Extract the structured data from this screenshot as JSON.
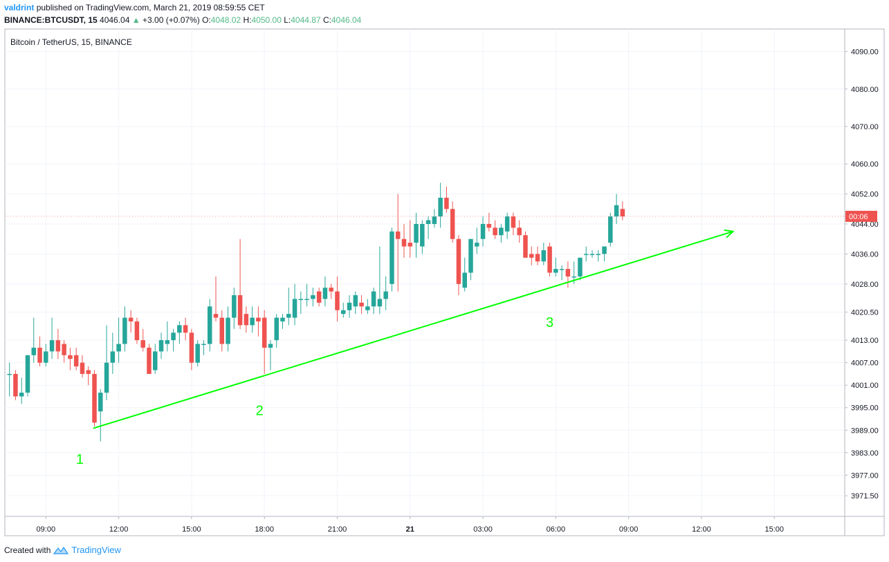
{
  "header": {
    "author": "valdrint",
    "published_text": "published on TradingView.com, March 21, 2019 08:59:55 CET",
    "symbol": "BINANCE:BTCUSDT, 15",
    "last": "4046.04",
    "change": "+3.00 (+0.07%)",
    "open_label": "O:",
    "open": "4048.02",
    "high_label": "H:",
    "high": "4050.00",
    "low_label": "L:",
    "low": "4044.87",
    "close_label": "C:",
    "close": "4046.04"
  },
  "footer": {
    "created_with": "Created with",
    "brand": "TradingView"
  },
  "colors": {
    "up": "#26a69a",
    "down": "#ef5350",
    "trendline": "#00ff00",
    "label": "#00ff00",
    "grid": "#f0f3fa",
    "price_badge": "#ef5350"
  },
  "chart_data": {
    "type": "candlestick",
    "title": "Bitcoin / TetherUS, 15, BINANCE",
    "ylim": [
      3966,
      4096
    ],
    "y_ticks": [
      "4090.00",
      "4080.00",
      "4070.00",
      "4060.00",
      "4052.00",
      "4044.00",
      "4036.00",
      "4028.00",
      "4020.50",
      "4013.00",
      "4007.00",
      "4001.00",
      "3995.00",
      "3989.00",
      "3983.00",
      "3977.00",
      "3971.50"
    ],
    "x_tick_labels": [
      "09:00",
      "12:00",
      "15:00",
      "18:00",
      "21:00",
      "21",
      "03:00",
      "06:00",
      "09:00",
      "12:00",
      "15:00"
    ],
    "x_range_hours": [
      -1.69,
      32.9
    ],
    "current_price_badge": "00:06",
    "current_price": 4046.04,
    "candles": [
      {
        "t": -1.5,
        "o": 4004,
        "h": 4007,
        "l": 3998,
        "c": 4004
      },
      {
        "t": -1.25,
        "o": 4004,
        "h": 4005,
        "l": 3997,
        "c": 3998
      },
      {
        "t": -1.0,
        "o": 3998,
        "h": 4003,
        "l": 3996,
        "c": 3999
      },
      {
        "t": -0.75,
        "o": 3999,
        "h": 4009,
        "l": 3998,
        "c": 4009
      },
      {
        "t": -0.5,
        "o": 4009,
        "h": 4019,
        "l": 4007,
        "c": 4011
      },
      {
        "t": -0.25,
        "o": 4011,
        "h": 4014,
        "l": 4006,
        "c": 4007
      },
      {
        "t": 0.0,
        "o": 4007,
        "h": 4012,
        "l": 4006,
        "c": 4010
      },
      {
        "t": 0.25,
        "o": 4010,
        "h": 4019,
        "l": 4008,
        "c": 4013
      },
      {
        "t": 0.5,
        "o": 4013,
        "h": 4016,
        "l": 4008,
        "c": 4010
      },
      {
        "t": 0.75,
        "o": 4012,
        "h": 4013,
        "l": 4007,
        "c": 4009
      },
      {
        "t": 1.0,
        "o": 4009,
        "h": 4011,
        "l": 4005,
        "c": 4008
      },
      {
        "t": 1.25,
        "o": 4009,
        "h": 4011,
        "l": 4005,
        "c": 4006
      },
      {
        "t": 1.5,
        "o": 4007,
        "h": 4009,
        "l": 4003,
        "c": 4004
      },
      {
        "t": 1.75,
        "o": 4005,
        "h": 4006,
        "l": 4001,
        "c": 4004
      },
      {
        "t": 2.0,
        "o": 4004,
        "h": 4005,
        "l": 3990,
        "c": 3991
      },
      {
        "t": 2.25,
        "o": 3994,
        "h": 4000,
        "l": 3986,
        "c": 3999
      },
      {
        "t": 2.5,
        "o": 3999,
        "h": 4017,
        "l": 3997,
        "c": 4007
      },
      {
        "t": 2.75,
        "o": 4007,
        "h": 4015,
        "l": 4004,
        "c": 4010
      },
      {
        "t": 3.0,
        "o": 4010,
        "h": 4019,
        "l": 4007,
        "c": 4012
      },
      {
        "t": 3.25,
        "o": 4012,
        "h": 4022,
        "l": 4010,
        "c": 4019
      },
      {
        "t": 3.5,
        "o": 4019,
        "h": 4021,
        "l": 4015,
        "c": 4018
      },
      {
        "t": 3.75,
        "o": 4018,
        "h": 4019,
        "l": 4012,
        "c": 4013
      },
      {
        "t": 4.0,
        "o": 4013,
        "h": 4016,
        "l": 4010,
        "c": 4011
      },
      {
        "t": 4.25,
        "o": 4011,
        "h": 4012,
        "l": 4004,
        "c": 4004
      },
      {
        "t": 4.5,
        "o": 4005,
        "h": 4012,
        "l": 4004,
        "c": 4010
      },
      {
        "t": 4.75,
        "o": 4010,
        "h": 4015,
        "l": 4008,
        "c": 4013
      },
      {
        "t": 5.0,
        "o": 4012,
        "h": 4018,
        "l": 4010,
        "c": 4013
      },
      {
        "t": 5.25,
        "o": 4013,
        "h": 4016,
        "l": 4010,
        "c": 4015
      },
      {
        "t": 5.5,
        "o": 4015,
        "h": 4018,
        "l": 4012,
        "c": 4017
      },
      {
        "t": 5.75,
        "o": 4017,
        "h": 4019,
        "l": 4013,
        "c": 4015
      },
      {
        "t": 6.0,
        "o": 4015,
        "h": 4016,
        "l": 4005,
        "c": 4007
      },
      {
        "t": 6.25,
        "o": 4007,
        "h": 4013,
        "l": 4006,
        "c": 4012
      },
      {
        "t": 6.5,
        "o": 4012,
        "h": 4013,
        "l": 4009,
        "c": 4012
      },
      {
        "t": 6.75,
        "o": 4012,
        "h": 4024,
        "l": 4010,
        "c": 4022
      },
      {
        "t": 7.0,
        "o": 4020,
        "h": 4030,
        "l": 4018,
        "c": 4019
      },
      {
        "t": 7.25,
        "o": 4019,
        "h": 4021,
        "l": 4010,
        "c": 4012
      },
      {
        "t": 7.5,
        "o": 4012,
        "h": 4022,
        "l": 4010,
        "c": 4019
      },
      {
        "t": 7.75,
        "o": 4019,
        "h": 4027,
        "l": 4016,
        "c": 4025
      },
      {
        "t": 8.0,
        "o": 4025,
        "h": 4040,
        "l": 4016,
        "c": 4017
      },
      {
        "t": 8.25,
        "o": 4020,
        "h": 4022,
        "l": 4015,
        "c": 4017
      },
      {
        "t": 8.5,
        "o": 4017,
        "h": 4022,
        "l": 4015,
        "c": 4019
      },
      {
        "t": 8.75,
        "o": 4019,
        "h": 4022,
        "l": 4014,
        "c": 4018
      },
      {
        "t": 9.0,
        "o": 4019,
        "h": 4021,
        "l": 4004,
        "c": 4011
      },
      {
        "t": 9.25,
        "o": 4011,
        "h": 4013,
        "l": 4005,
        "c": 4012
      },
      {
        "t": 9.5,
        "o": 4013,
        "h": 4020,
        "l": 4011,
        "c": 4019
      },
      {
        "t": 9.75,
        "o": 4018,
        "h": 4020,
        "l": 4016,
        "c": 4019
      },
      {
        "t": 10.0,
        "o": 4019,
        "h": 4027,
        "l": 4017,
        "c": 4020
      },
      {
        "t": 10.25,
        "o": 4019,
        "h": 4028,
        "l": 4017,
        "c": 4024
      },
      {
        "t": 10.5,
        "o": 4024,
        "h": 4026,
        "l": 4020,
        "c": 4024
      },
      {
        "t": 10.75,
        "o": 4024,
        "h": 4028,
        "l": 4022,
        "c": 4024
      },
      {
        "t": 11.0,
        "o": 4024,
        "h": 4027,
        "l": 4022,
        "c": 4025
      },
      {
        "t": 11.25,
        "o": 4026,
        "h": 4027,
        "l": 4022,
        "c": 4023
      },
      {
        "t": 11.5,
        "o": 4024,
        "h": 4030,
        "l": 4022,
        "c": 4027
      },
      {
        "t": 11.75,
        "o": 4027,
        "h": 4028,
        "l": 4024,
        "c": 4026
      },
      {
        "t": 12.0,
        "o": 4026,
        "h": 4030,
        "l": 4018,
        "c": 4021
      },
      {
        "t": 12.25,
        "o": 4020,
        "h": 4023,
        "l": 4019,
        "c": 4021
      },
      {
        "t": 12.5,
        "o": 4021,
        "h": 4025,
        "l": 4019,
        "c": 4023
      },
      {
        "t": 12.75,
        "o": 4022,
        "h": 4026,
        "l": 4020,
        "c": 4025
      },
      {
        "t": 13.0,
        "o": 4023,
        "h": 4025,
        "l": 4020,
        "c": 4022
      },
      {
        "t": 13.25,
        "o": 4021,
        "h": 4024,
        "l": 4020,
        "c": 4022
      },
      {
        "t": 13.5,
        "o": 4022,
        "h": 4027,
        "l": 4020,
        "c": 4026
      },
      {
        "t": 13.75,
        "o": 4022,
        "h": 4038,
        "l": 4020,
        "c": 4024
      },
      {
        "t": 14.0,
        "o": 4024,
        "h": 4030,
        "l": 4021,
        "c": 4026
      },
      {
        "t": 14.25,
        "o": 4028,
        "h": 4043,
        "l": 4026,
        "c": 4042
      },
      {
        "t": 14.5,
        "o": 4042,
        "h": 4052,
        "l": 4026,
        "c": 4040
      },
      {
        "t": 14.75,
        "o": 4040,
        "h": 4044,
        "l": 4035,
        "c": 4038
      },
      {
        "t": 15.0,
        "o": 4039,
        "h": 4045,
        "l": 4035,
        "c": 4038
      },
      {
        "t": 15.25,
        "o": 4039,
        "h": 4047,
        "l": 4035,
        "c": 4044
      },
      {
        "t": 15.5,
        "o": 4038,
        "h": 4045,
        "l": 4036,
        "c": 4044
      },
      {
        "t": 15.75,
        "o": 4044,
        "h": 4046,
        "l": 4040,
        "c": 4045
      },
      {
        "t": 16.0,
        "o": 4044,
        "h": 4048,
        "l": 4043,
        "c": 4046
      },
      {
        "t": 16.25,
        "o": 4046,
        "h": 4055,
        "l": 4043,
        "c": 4051
      },
      {
        "t": 16.5,
        "o": 4051,
        "h": 4054,
        "l": 4047,
        "c": 4048
      },
      {
        "t": 16.75,
        "o": 4048,
        "h": 4050,
        "l": 4039,
        "c": 4040
      },
      {
        "t": 17.0,
        "o": 4040,
        "h": 4041,
        "l": 4025,
        "c": 4028
      },
      {
        "t": 17.25,
        "o": 4027,
        "h": 4035,
        "l": 4026,
        "c": 4031
      },
      {
        "t": 17.5,
        "o": 4031,
        "h": 4040,
        "l": 4029,
        "c": 4040
      },
      {
        "t": 17.75,
        "o": 4038,
        "h": 4043,
        "l": 4036,
        "c": 4039
      },
      {
        "t": 18.0,
        "o": 4040,
        "h": 4046,
        "l": 4038,
        "c": 4044
      },
      {
        "t": 18.25,
        "o": 4044,
        "h": 4047,
        "l": 4042,
        "c": 4043
      },
      {
        "t": 18.5,
        "o": 4043,
        "h": 4045,
        "l": 4040,
        "c": 4041
      },
      {
        "t": 18.75,
        "o": 4041,
        "h": 4044,
        "l": 4039,
        "c": 4043
      },
      {
        "t": 19.0,
        "o": 4042,
        "h": 4047,
        "l": 4040,
        "c": 4046
      },
      {
        "t": 19.25,
        "o": 4046,
        "h": 4047,
        "l": 4041,
        "c": 4043
      },
      {
        "t": 19.5,
        "o": 4043,
        "h": 4045,
        "l": 4039,
        "c": 4041
      },
      {
        "t": 19.75,
        "o": 4041,
        "h": 4042,
        "l": 4035,
        "c": 4035
      },
      {
        "t": 20.0,
        "o": 4036,
        "h": 4038,
        "l": 4033,
        "c": 4035
      },
      {
        "t": 20.25,
        "o": 4036,
        "h": 4038,
        "l": 4033,
        "c": 4034
      },
      {
        "t": 20.5,
        "o": 4034,
        "h": 4039,
        "l": 4033,
        "c": 4037
      },
      {
        "t": 20.75,
        "o": 4038,
        "h": 4039,
        "l": 4030,
        "c": 4031
      },
      {
        "t": 21.0,
        "o": 4031,
        "h": 4035,
        "l": 4030,
        "c": 4032
      },
      {
        "t": 21.25,
        "o": 4032,
        "h": 4033,
        "l": 4029,
        "c": 4032
      },
      {
        "t": 21.5,
        "o": 4032,
        "h": 4034,
        "l": 4027,
        "c": 4030
      },
      {
        "t": 21.75,
        "o": 4030,
        "h": 4034,
        "l": 4028,
        "c": 4030
      },
      {
        "t": 22.0,
        "o": 4030,
        "h": 4035,
        "l": 4029,
        "c": 4035
      },
      {
        "t": 22.25,
        "o": 4036,
        "h": 4038,
        "l": 4034,
        "c": 4036
      },
      {
        "t": 22.5,
        "o": 4036,
        "h": 4037,
        "l": 4035,
        "c": 4036
      },
      {
        "t": 22.75,
        "o": 4036,
        "h": 4037,
        "l": 4034,
        "c": 4036
      },
      {
        "t": 23.0,
        "o": 4036,
        "h": 4038,
        "l": 4034,
        "c": 4038
      },
      {
        "t": 23.25,
        "o": 4039,
        "h": 4047,
        "l": 4038,
        "c": 4046
      },
      {
        "t": 23.5,
        "o": 4046,
        "h": 4052,
        "l": 4044,
        "c": 4049
      },
      {
        "t": 23.75,
        "o": 4048,
        "h": 4050,
        "l": 4045,
        "c": 4046
      }
    ],
    "trendline": {
      "start": {
        "t": 1.95,
        "price": 3989.5
      },
      "end": {
        "t": 28.3,
        "price": 4042.0
      },
      "arrow": true
    },
    "annotations": [
      {
        "text": "1",
        "t": 1.4,
        "price": 3980.0
      },
      {
        "text": "2",
        "t": 8.8,
        "price": 3993.0
      },
      {
        "text": "3",
        "t": 20.75,
        "price": 4016.5
      }
    ]
  }
}
